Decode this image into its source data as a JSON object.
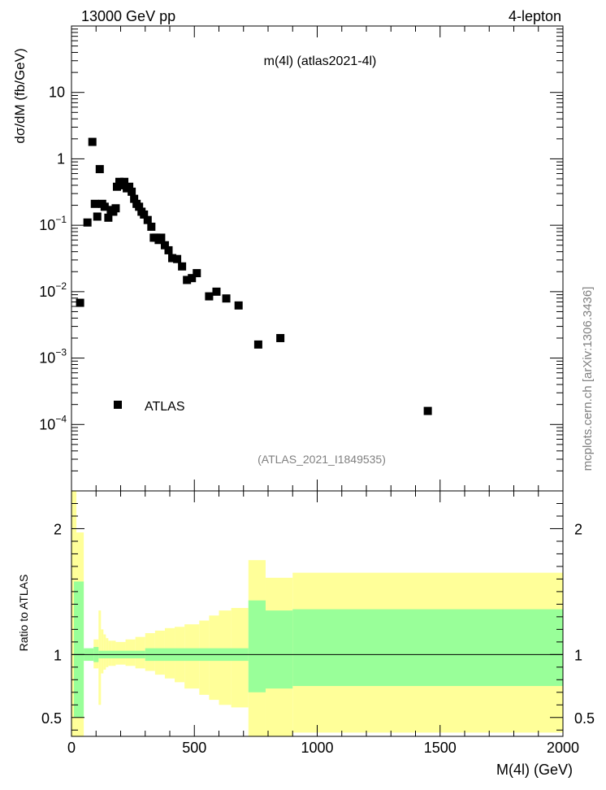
{
  "header": {
    "energy_label": "13000 GeV pp",
    "process_label": "4-lepton",
    "plot_title": "m(4l) (atlas2021-4l)",
    "analysis_id": "(ATLAS_2021_I1849535)",
    "side_credit": "mcplots.cern.ch [arXiv:1306.3436]"
  },
  "legend": {
    "label": "ATLAS"
  },
  "colors": {
    "band_outer": "#ffff99",
    "band_inner": "#99ff99",
    "marker": "#000000",
    "caption_gray": "#808080"
  },
  "chart_data": [
    {
      "type": "scatter",
      "title": "m(4l) (atlas2021-4l)",
      "ylabel": "dσ/dM (fb/GeV)",
      "xlabel": "",
      "yscale": "log",
      "xlim": [
        0,
        2000
      ],
      "ylim": [
        1e-05,
        100
      ],
      "yticks": [
        {
          "value": 10,
          "label": "10"
        },
        {
          "value": 1,
          "label": "1"
        },
        {
          "value": 0.1,
          "label": "10",
          "exp": "−1"
        },
        {
          "value": 0.01,
          "label": "10",
          "exp": "−2"
        },
        {
          "value": 0.001,
          "label": "10",
          "exp": "−3"
        },
        {
          "value": 0.0001,
          "label": "10",
          "exp": "−4"
        }
      ],
      "series": [
        {
          "name": "ATLAS",
          "points": [
            [
              35,
              0.0068
            ],
            [
              65,
              0.11
            ],
            [
              85,
              1.8
            ],
            [
              95,
              0.21
            ],
            [
              105,
              0.135
            ],
            [
              115,
              0.7
            ],
            [
              125,
              0.21
            ],
            [
              135,
              0.19
            ],
            [
              150,
              0.13
            ],
            [
              160,
              0.17
            ],
            [
              170,
              0.16
            ],
            [
              180,
              0.18
            ],
            [
              185,
              0.38
            ],
            [
              195,
              0.45
            ],
            [
              205,
              0.4
            ],
            [
              215,
              0.45
            ],
            [
              225,
              0.36
            ],
            [
              235,
              0.38
            ],
            [
              245,
              0.32
            ],
            [
              255,
              0.25
            ],
            [
              265,
              0.21
            ],
            [
              275,
              0.19
            ],
            [
              285,
              0.16
            ],
            [
              295,
              0.145
            ],
            [
              310,
              0.12
            ],
            [
              325,
              0.095
            ],
            [
              335,
              0.065
            ],
            [
              345,
              0.065
            ],
            [
              355,
              0.06
            ],
            [
              365,
              0.065
            ],
            [
              380,
              0.05
            ],
            [
              395,
              0.042
            ],
            [
              410,
              0.032
            ],
            [
              430,
              0.031
            ],
            [
              450,
              0.024
            ],
            [
              470,
              0.015
            ],
            [
              490,
              0.016
            ],
            [
              510,
              0.019
            ],
            [
              560,
              0.0085
            ],
            [
              590,
              0.01
            ],
            [
              630,
              0.0079
            ],
            [
              680,
              0.0062
            ],
            [
              760,
              0.0016
            ],
            [
              850,
              0.002
            ],
            [
              1450,
              0.00016
            ]
          ]
        }
      ]
    },
    {
      "type": "area",
      "ylabel": "Ratio to ATLAS",
      "xlabel": "M(4l) (GeV)",
      "xlim": [
        0,
        2000
      ],
      "ylim": [
        0.35,
        2.3
      ],
      "xticks": [
        0,
        500,
        1000,
        1500,
        2000
      ],
      "yticks": [
        {
          "value": 0.5,
          "label": "0.5"
        },
        {
          "value": 1,
          "label": "1"
        },
        {
          "value": 2,
          "label": "2"
        }
      ],
      "reference_line": 1,
      "series": [
        {
          "name": "outer band",
          "bins": [
            [
              0,
              20,
              0.35,
              2.3
            ],
            [
              20,
              50,
              0.35,
              1.97
            ],
            [
              50,
              90,
              1.0,
              1.0
            ],
            [
              90,
              110,
              0.89,
              1.12
            ],
            [
              110,
              120,
              0.6,
              1.35
            ],
            [
              120,
              130,
              0.85,
              1.2
            ],
            [
              130,
              140,
              0.88,
              1.16
            ],
            [
              140,
              150,
              0.9,
              1.13
            ],
            [
              150,
              165,
              0.91,
              1.11
            ],
            [
              165,
              180,
              0.91,
              1.11
            ],
            [
              180,
              220,
              0.92,
              1.1
            ],
            [
              220,
              260,
              0.91,
              1.12
            ],
            [
              260,
              300,
              0.89,
              1.14
            ],
            [
              300,
              340,
              0.87,
              1.17
            ],
            [
              340,
              380,
              0.84,
              1.19
            ],
            [
              380,
              420,
              0.81,
              1.21
            ],
            [
              420,
              460,
              0.78,
              1.22
            ],
            [
              460,
              520,
              0.73,
              1.24
            ],
            [
              520,
              560,
              0.68,
              1.27
            ],
            [
              560,
              600,
              0.64,
              1.31
            ],
            [
              600,
              650,
              0.6,
              1.35
            ],
            [
              650,
              720,
              0.58,
              1.37
            ],
            [
              720,
              790,
              0.35,
              1.75
            ],
            [
              790,
              900,
              0.35,
              1.61
            ],
            [
              900,
              2000,
              0.38,
              1.65
            ]
          ]
        },
        {
          "name": "inner band",
          "bins": [
            [
              10,
              50,
              0.5,
              1.58
            ],
            [
              50,
              90,
              0.95,
              1.05
            ],
            [
              90,
              110,
              0.94,
              1.06
            ],
            [
              110,
              300,
              0.97,
              1.03
            ],
            [
              300,
              720,
              0.95,
              1.05
            ],
            [
              720,
              790,
              0.7,
              1.43
            ],
            [
              790,
              900,
              0.73,
              1.35
            ],
            [
              900,
              2000,
              0.75,
              1.36
            ]
          ]
        }
      ]
    }
  ]
}
